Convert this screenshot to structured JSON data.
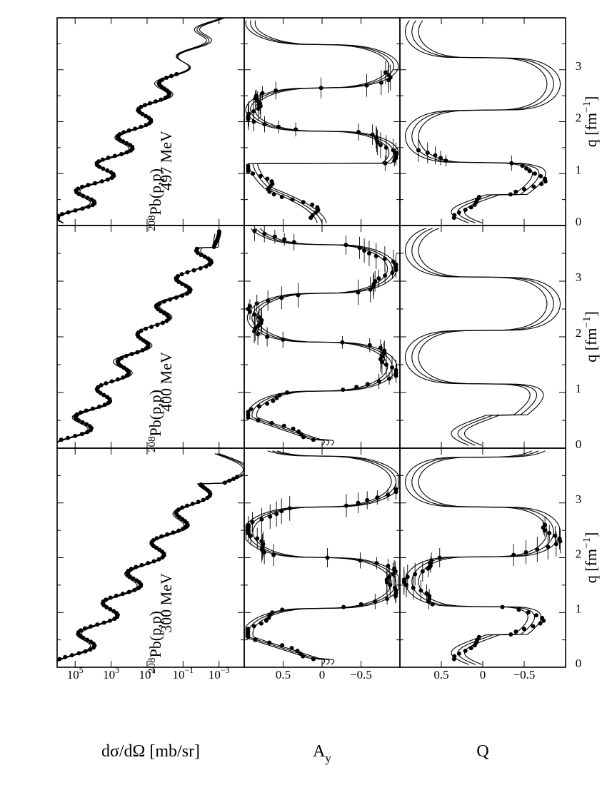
{
  "chart_data": {
    "type": "line",
    "layout": "3x3 grid, rotated 90 degrees counter-clockwise",
    "x_axis": {
      "label": "q  [fm",
      "label_exponent": "−1",
      "label_close": "]",
      "range": [
        0,
        4
      ],
      "ticks": [
        "0",
        "1",
        "2",
        "3"
      ]
    },
    "rows": [
      {
        "name": "cross_section",
        "ylabel": "dσ/dΩ  [mb/sr]",
        "scale": "log",
        "ticks": [
          {
            "base": "10",
            "exp": "5",
            "value": 5
          },
          {
            "base": "10",
            "exp": "3",
            "value": 3
          },
          {
            "base": "10",
            "exp": "1",
            "value": 1
          },
          {
            "base": "10",
            "exp": "−1",
            "value": -1
          },
          {
            "base": "10",
            "exp": "−3",
            "value": -3
          }
        ],
        "range": [
          -4.4,
          6
        ]
      },
      {
        "name": "analyzing_power",
        "ylabel": "A",
        "ylabel_sub": "y",
        "scale": "linear",
        "ticks": [
          {
            "label": "0.5",
            "value": 0.5
          },
          {
            "label": "0",
            "value": 0
          },
          {
            "label": "−0.5",
            "value": -0.5
          }
        ],
        "range": [
          -1,
          1
        ]
      },
      {
        "name": "spin_rotation",
        "ylabel": "Q",
        "scale": "linear",
        "ticks": [
          {
            "label": "0.5",
            "value": 0.5
          },
          {
            "label": "0",
            "value": 0
          },
          {
            "label": "−0.5",
            "value": -0.5
          }
        ],
        "range": [
          -1,
          1
        ]
      }
    ],
    "columns": [
      {
        "energy": "300 MeV",
        "nucleus_sup": "208",
        "nucleus": "Pb(p,p)",
        "q_max_xs": 3.9,
        "data_q_max": 3.5,
        "ay_data_q_max": 3.25
      },
      {
        "energy": "400 MeV",
        "nucleus_sup": "208",
        "nucleus": "Pb(p,p)",
        "q_max_xs": 3.85,
        "data_q_max": 3.9,
        "ay_data_q_max": 3.9
      },
      {
        "energy": "497 MeV",
        "nucleus_sup": "208",
        "nucleus": "Pb(p,p)",
        "q_max_xs": 4.0,
        "data_q_max": 2.95,
        "ay_data_q_max": 2.95
      }
    ]
  }
}
